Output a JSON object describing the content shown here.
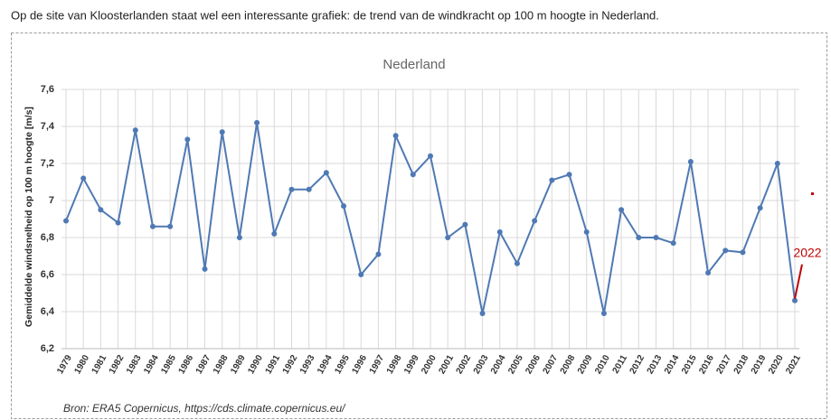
{
  "intro": "Op de site van Kloosterlanden staat wel een interessante grafiek: de trend van de windkracht op 100 m hoogte in Nederland.",
  "chart_data": {
    "type": "line",
    "title": "Nederland",
    "y_label": "Gemiddelde windsnelheid op 100 m hoogte [m/s]",
    "source": "Bron: ERA5 Copernicus, https://cds.climate.copernicus.eu/",
    "annotation": "2022",
    "categories": [
      "1979",
      "1980",
      "1981",
      "1982",
      "1983",
      "1984",
      "1985",
      "1986",
      "1987",
      "1988",
      "1989",
      "1990",
      "1991",
      "1992",
      "1993",
      "1994",
      "1995",
      "1996",
      "1997",
      "1998",
      "1999",
      "2000",
      "2001",
      "2002",
      "2003",
      "2004",
      "2005",
      "2006",
      "2007",
      "2008",
      "2009",
      "2010",
      "2011",
      "2012",
      "2013",
      "2014",
      "2015",
      "2016",
      "2017",
      "2018",
      "2019",
      "2020",
      "2021"
    ],
    "values": [
      6.89,
      7.12,
      6.95,
      6.88,
      7.38,
      6.86,
      6.86,
      7.33,
      6.63,
      7.37,
      6.8,
      7.42,
      6.82,
      7.06,
      7.06,
      7.15,
      6.97,
      6.6,
      6.71,
      7.35,
      7.14,
      7.24,
      6.8,
      6.87,
      6.39,
      6.83,
      6.66,
      6.89,
      7.11,
      7.14,
      6.83,
      6.39,
      6.95,
      6.8,
      6.8,
      6.77,
      7.21,
      6.61,
      6.73,
      6.72,
      6.96,
      7.2,
      6.46
    ],
    "color": "#4f79b4",
    "ylim": [
      6.2,
      7.6
    ],
    "yticks": [
      {
        "value": 6.2,
        "label": "6,2"
      },
      {
        "value": 6.4,
        "label": "6,4"
      },
      {
        "value": 6.6,
        "label": "6,6"
      },
      {
        "value": 6.8,
        "label": "6,8"
      },
      7,
      {
        "value": 7.2,
        "label": "7,2"
      },
      {
        "value": 7.4,
        "label": "7,4"
      },
      {
        "value": 7.6,
        "label": "7,6"
      }
    ],
    "grid": true
  }
}
